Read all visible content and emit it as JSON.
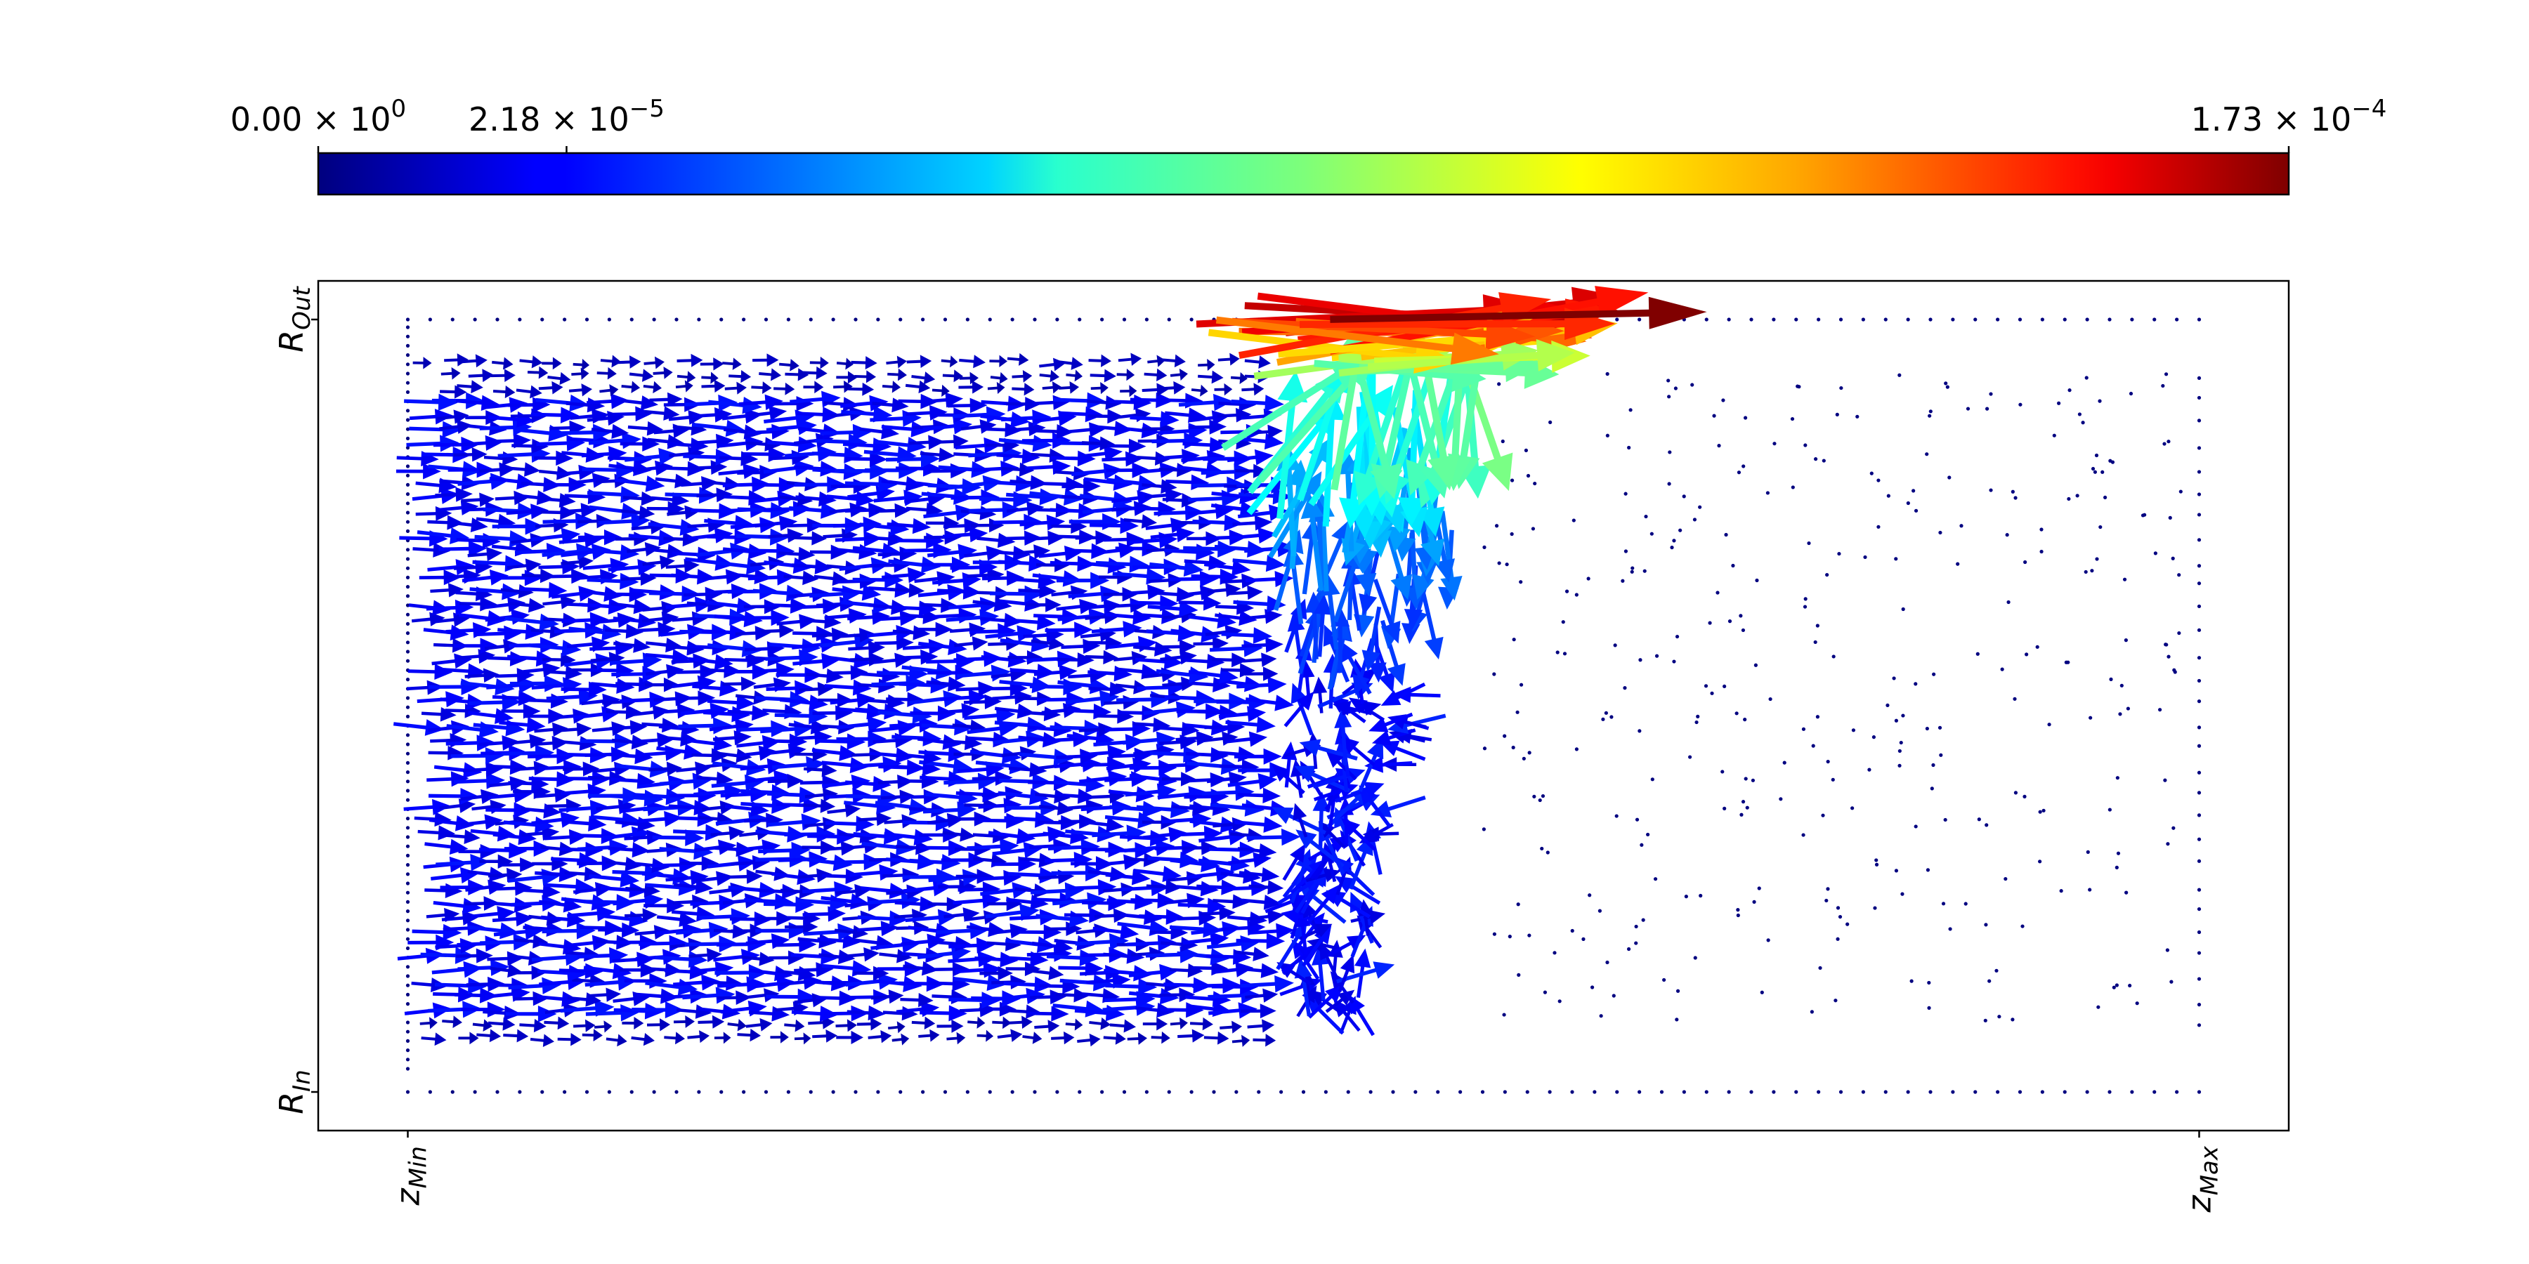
{
  "chart_data": {
    "type": "quiver",
    "title": "",
    "colorbar": {
      "orientation": "horizontal",
      "location": "top",
      "colormap": "jet",
      "vmin": 0.0,
      "vmax": 0.000173,
      "ticks": [
        {
          "value": 0.0,
          "mantissa": "0.00",
          "exponent": "0"
        },
        {
          "value": 2.18e-05,
          "mantissa": "2.18",
          "exponent": "−5"
        },
        {
          "value": 0.000173,
          "mantissa": "1.73",
          "exponent": "−4"
        }
      ]
    },
    "axes": {
      "x": {
        "min_label_base": "z",
        "min_label_sub": "Min",
        "max_label_base": "z",
        "max_label_sub": "Max",
        "tick_rotation": "vertical"
      },
      "y": {
        "min_label_base": "R",
        "min_label_sub": "In",
        "max_label_base": "R",
        "max_label_sub": "Out",
        "tick_rotation": "vertical"
      },
      "xlim": [
        -0.05,
        1.05
      ],
      "ylim": [
        -0.05,
        1.05
      ],
      "grid": false
    },
    "fields": {
      "inlet_region": {
        "x_range": [
          0.0,
          0.48
        ],
        "y_range": [
          0.07,
          0.95
        ],
        "direction": "+x",
        "magnitude": 2e-05
      },
      "front": {
        "x_center": 0.52,
        "y_range": [
          0.1,
          0.98
        ],
        "description": "swirl with recirculation near outer wall"
      },
      "jet_near_outer_wall": {
        "x_range": [
          0.5,
          0.65
        ],
        "y": 0.98,
        "direction": "+x",
        "peak_magnitude": 0.000173
      },
      "quiescent_region": {
        "x_range": [
          0.6,
          1.0
        ],
        "magnitude": 0.0
      }
    },
    "boundary_points": {
      "y_values": [
        0.0,
        1.0
      ],
      "x_spacing": 0.0125
    }
  }
}
